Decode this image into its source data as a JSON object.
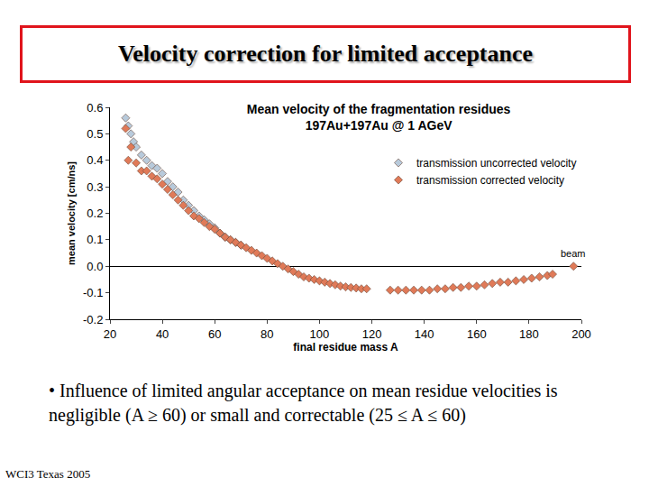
{
  "slide": {
    "title": "Velocity correction for  limited acceptance",
    "bullet": "• Influence of limited angular acceptance on mean residue velocities is negligible (A ≥ 60) or small and correctable (25 ≤ A ≤ 60)",
    "footer": "WCI3 Texas 2005"
  },
  "chart_data": {
    "type": "scatter",
    "title": "Mean velocity of the fragmentation residues",
    "subtitle": "197Au+197Au @ 1 AGeV",
    "x_label": "final residue mass A",
    "y_label": "mean velocity [cm/ns]",
    "xlim": [
      20,
      200
    ],
    "xticks": [
      20,
      40,
      60,
      80,
      100,
      120,
      140,
      160,
      180,
      200
    ],
    "ylim": [
      -0.2,
      0.6
    ],
    "yticks": [
      -0.2,
      -0.1,
      {
        "value": 0,
        "label": "0.0"
      },
      0.1,
      0.2,
      0.3,
      0.4,
      0.5,
      0.6
    ],
    "grid": false,
    "legend": "upper right",
    "marker": "diamond",
    "series": [
      {
        "name": "transmission uncorrected velocity",
        "color": "#b8cadb",
        "x": [
          26,
          27,
          28,
          29,
          30,
          32,
          34,
          36,
          38,
          40,
          42,
          44,
          46,
          48,
          50,
          52,
          54,
          56,
          58,
          60,
          62,
          64,
          66,
          68,
          70
        ],
        "values": [
          0.56,
          0.53,
          0.5,
          0.47,
          0.45,
          0.42,
          0.4,
          0.38,
          0.37,
          0.35,
          0.32,
          0.3,
          0.28,
          0.25,
          0.23,
          0.21,
          0.19,
          0.175,
          0.16,
          0.145,
          0.125,
          0.11,
          0.1,
          0.09,
          0.08
        ]
      },
      {
        "name": "transmission corrected velocity",
        "color": "#e07a58",
        "x": [
          26,
          27,
          28,
          30,
          32,
          34,
          36,
          38,
          40,
          42,
          44,
          46,
          48,
          50,
          52,
          54,
          56,
          58,
          60,
          62,
          64,
          66,
          68,
          70,
          72,
          74,
          76,
          78,
          80,
          82,
          84,
          86,
          88,
          90,
          92,
          94,
          96,
          98,
          100,
          102,
          104,
          106,
          108,
          110,
          112,
          114,
          116,
          118,
          127,
          130,
          133,
          136,
          139,
          142,
          145,
          148,
          151,
          154,
          157,
          160,
          163,
          166,
          169,
          172,
          175,
          178,
          181,
          184,
          187,
          189,
          197
        ],
        "values": [
          0.52,
          0.4,
          0.45,
          0.39,
          0.36,
          0.36,
          0.34,
          0.33,
          0.31,
          0.29,
          0.27,
          0.25,
          0.23,
          0.21,
          0.19,
          0.18,
          0.165,
          0.15,
          0.14,
          0.125,
          0.11,
          0.1,
          0.09,
          0.08,
          0.07,
          0.06,
          0.05,
          0.04,
          0.03,
          0.02,
          0.01,
          0.0,
          -0.01,
          -0.02,
          -0.03,
          -0.04,
          -0.045,
          -0.05,
          -0.055,
          -0.06,
          -0.065,
          -0.07,
          -0.075,
          -0.078,
          -0.08,
          -0.082,
          -0.085,
          -0.085,
          -0.09,
          -0.09,
          -0.09,
          -0.09,
          -0.09,
          -0.09,
          -0.085,
          -0.085,
          -0.08,
          -0.08,
          -0.075,
          -0.075,
          -0.07,
          -0.065,
          -0.06,
          -0.06,
          -0.055,
          -0.05,
          -0.045,
          -0.04,
          -0.035,
          -0.03,
          0.0
        ]
      }
    ],
    "annotations": [
      {
        "text": "beam",
        "x": 197,
        "y": 0
      }
    ]
  }
}
